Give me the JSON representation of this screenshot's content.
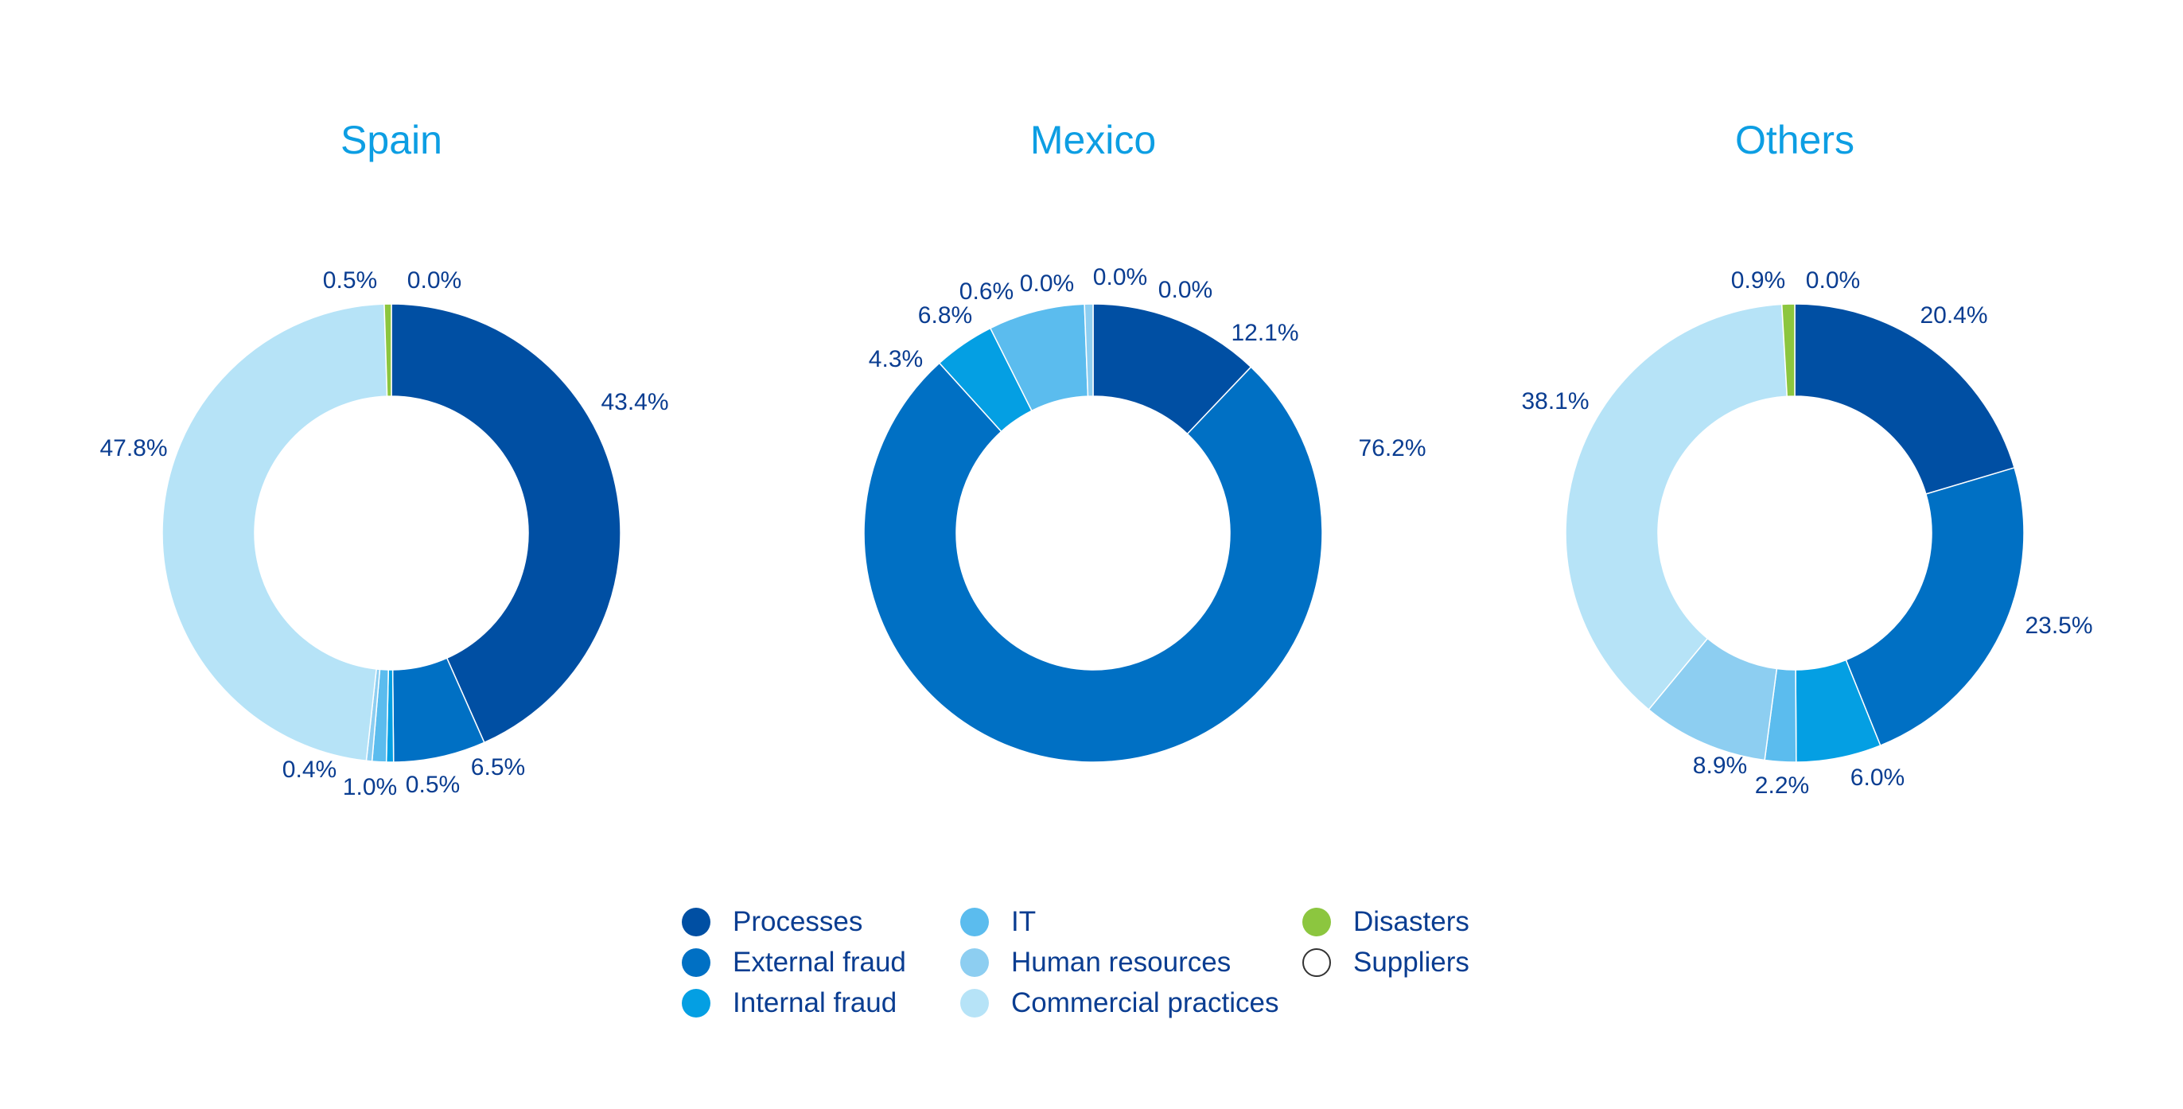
{
  "chart_data": {
    "type": "pie",
    "categories": [
      "Processes",
      "External fraud",
      "Internal fraud",
      "IT",
      "Human resources",
      "Commercial practices",
      "Disasters",
      "Suppliers"
    ],
    "colors": {
      "Processes": "#004fa3",
      "External fraud": "#0070c4",
      "Internal fraud": "#049fe3",
      "IT": "#5bbcee",
      "Human resources": "#8dcef1",
      "Commercial practices": "#b6e3f7",
      "Disasters": "#8cc63f",
      "Suppliers": "#ffffff"
    },
    "label_color": "#0a3d91",
    "title_color": "#0d9ee3",
    "charts": [
      {
        "title": "Spain",
        "values": [
          43.4,
          6.5,
          0.5,
          1.0,
          0.4,
          47.8,
          0.5,
          0.0
        ],
        "labels": [
          "43.4%",
          "6.5%",
          "0.5%",
          "1.0%",
          "0.4%",
          "47.8%",
          "0.5%",
          "0.0%"
        ]
      },
      {
        "title": "Mexico",
        "values": [
          12.1,
          76.2,
          4.3,
          6.8,
          0.6,
          0.0,
          0.0,
          0.0
        ],
        "labels": [
          "12.1%",
          "76.2%",
          "4.3%",
          "6.8%",
          "0.6%",
          "0.0%",
          "0.0%",
          "0.0%"
        ]
      },
      {
        "title": "Others",
        "values": [
          20.4,
          23.5,
          6.0,
          2.2,
          8.9,
          38.1,
          0.9,
          0.0
        ],
        "labels": [
          "20.4%",
          "23.5%",
          "6.0%",
          "2.2%",
          "8.9%",
          "38.1%",
          "0.9%",
          "0.0%"
        ]
      }
    ]
  },
  "legend": {
    "items": [
      "Processes",
      "External fraud",
      "Internal fraud",
      "IT",
      "Human resources",
      "Commercial practices",
      "Disasters",
      "Suppliers"
    ]
  }
}
